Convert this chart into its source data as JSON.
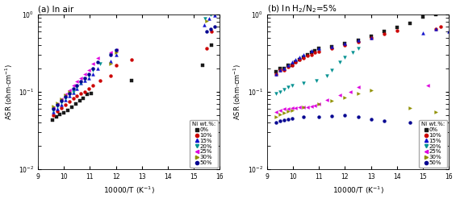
{
  "title_a": "(a) In air",
  "title_b": "(b) In H$_2$/N$_2$=5%",
  "xlabel": "10000/T (K$^{-1}$)",
  "ylabel": "ASR (ohm$\\cdot$cm$^{-1}$)",
  "legend_title": "Ni wt.%:",
  "series": [
    {
      "label": "0%",
      "color": "#1a1a1a",
      "marker": "s",
      "ms": 2.8
    },
    {
      "label": "10%",
      "color": "#cc0000",
      "marker": "o",
      "ms": 2.8
    },
    {
      "label": "15%",
      "color": "#1111cc",
      "marker": "^",
      "ms": 2.8
    },
    {
      "label": "20%",
      "color": "#009090",
      "marker": "v",
      "ms": 2.8
    },
    {
      "label": "25%",
      "color": "#dd00dd",
      "marker": "<",
      "ms": 2.8
    },
    {
      "label": "30%",
      "color": "#909000",
      "marker": ">",
      "ms": 2.8
    },
    {
      "label": "50%",
      "color": "#000090",
      "marker": "o",
      "ms": 2.8
    }
  ],
  "data_air": {
    "0%": {
      "x": [
        9.55,
        9.7,
        9.85,
        10.0,
        10.15,
        10.3,
        10.45,
        10.6,
        10.75,
        10.9,
        11.05,
        12.6,
        15.35,
        15.7
      ],
      "y": [
        0.043,
        0.047,
        0.051,
        0.054,
        0.058,
        0.063,
        0.069,
        0.076,
        0.083,
        0.092,
        0.095,
        0.14,
        0.22,
        0.4
      ]
    },
    "10%": {
      "x": [
        9.6,
        9.75,
        9.9,
        10.05,
        10.2,
        10.35,
        10.5,
        10.65,
        10.8,
        10.95,
        11.1,
        11.4,
        11.8,
        12.0,
        12.6,
        15.5,
        15.7
      ],
      "y": [
        0.05,
        0.056,
        0.062,
        0.068,
        0.075,
        0.082,
        0.088,
        0.095,
        0.1,
        0.11,
        0.12,
        0.14,
        0.16,
        0.22,
        0.26,
        0.36,
        0.6
      ]
    },
    "15%": {
      "x": [
        9.6,
        9.75,
        9.9,
        10.05,
        10.2,
        10.35,
        10.5,
        10.65,
        10.8,
        10.95,
        11.1,
        11.3,
        11.8,
        12.0,
        15.4,
        15.6,
        15.8
      ],
      "y": [
        0.055,
        0.06,
        0.068,
        0.078,
        0.088,
        0.098,
        0.11,
        0.13,
        0.14,
        0.15,
        0.17,
        0.2,
        0.25,
        0.3,
        0.72,
        0.88,
        0.96
      ]
    },
    "20%": {
      "x": [
        9.6,
        9.75,
        9.9,
        10.05,
        10.2,
        10.35,
        10.5,
        10.65,
        10.8,
        10.95,
        11.1,
        11.4,
        11.8,
        12.0,
        15.45,
        15.65
      ],
      "y": [
        0.058,
        0.065,
        0.073,
        0.082,
        0.092,
        0.1,
        0.115,
        0.13,
        0.145,
        0.16,
        0.19,
        0.23,
        0.3,
        0.34,
        0.88,
        1.0
      ]
    },
    "25%": {
      "x": [
        9.6,
        9.75,
        9.9,
        10.05,
        10.2,
        10.35,
        10.5,
        10.65,
        10.8,
        10.95,
        11.1,
        11.3,
        11.8,
        12.0
      ],
      "y": [
        0.062,
        0.07,
        0.08,
        0.092,
        0.105,
        0.12,
        0.135,
        0.15,
        0.17,
        0.19,
        0.23,
        0.27,
        0.32,
        0.35
      ]
    },
    "30%": {
      "x": [
        9.6,
        9.75,
        9.9,
        10.05,
        10.2,
        11.8,
        12.0,
        15.5
      ],
      "y": [
        0.065,
        0.072,
        0.08,
        0.09,
        0.1,
        0.23,
        0.32,
        0.82
      ]
    },
    "50%": {
      "x": [
        9.6,
        9.75,
        9.9,
        10.05,
        10.2,
        10.35,
        10.5,
        10.65,
        10.8,
        10.95,
        11.1,
        11.3,
        11.8,
        12.0,
        15.5,
        15.65,
        15.8
      ],
      "y": [
        0.06,
        0.068,
        0.076,
        0.086,
        0.096,
        0.11,
        0.12,
        0.135,
        0.15,
        0.17,
        0.2,
        0.24,
        0.3,
        0.35,
        0.6,
        0.65,
        0.7
      ]
    }
  },
  "data_h2": {
    "0%": {
      "x": [
        9.35,
        9.5,
        9.65,
        9.8,
        9.95,
        10.1,
        10.25,
        10.4,
        10.55,
        10.7,
        10.85,
        11.0,
        11.5,
        12.0,
        12.5,
        13.0,
        13.5,
        14.0,
        14.5,
        15.0,
        15.5
      ],
      "y": [
        0.18,
        0.2,
        0.2,
        0.22,
        0.22,
        0.24,
        0.26,
        0.28,
        0.3,
        0.32,
        0.34,
        0.36,
        0.38,
        0.42,
        0.46,
        0.52,
        0.6,
        0.68,
        0.76,
        0.92,
        1.0
      ]
    },
    "10%": {
      "x": [
        9.35,
        9.5,
        9.65,
        9.8,
        9.95,
        10.1,
        10.25,
        10.4,
        10.55,
        10.7,
        10.85,
        11.0,
        11.5,
        12.0,
        12.5,
        13.0,
        13.5,
        14.0,
        15.5,
        15.7
      ],
      "y": [
        0.17,
        0.19,
        0.19,
        0.21,
        0.22,
        0.24,
        0.26,
        0.27,
        0.29,
        0.3,
        0.32,
        0.33,
        0.36,
        0.4,
        0.44,
        0.5,
        0.56,
        0.62,
        0.65,
        0.7
      ]
    },
    "15%": {
      "x": [
        9.35,
        9.5,
        9.65,
        9.8,
        9.95,
        10.1,
        10.25,
        10.4,
        10.7,
        11.0,
        11.5,
        12.0,
        12.5,
        13.0,
        15.0,
        15.5,
        16.0
      ],
      "y": [
        0.17,
        0.19,
        0.2,
        0.22,
        0.24,
        0.26,
        0.28,
        0.3,
        0.34,
        0.36,
        0.38,
        0.42,
        0.46,
        0.5,
        0.58,
        0.65,
        0.6
      ]
    },
    "20%": {
      "x": [
        9.35,
        9.5,
        9.65,
        9.8,
        9.95,
        10.4,
        10.9,
        11.3,
        11.5,
        11.8,
        12.0,
        12.3,
        12.5
      ],
      "y": [
        0.095,
        0.1,
        0.108,
        0.115,
        0.12,
        0.13,
        0.14,
        0.16,
        0.19,
        0.24,
        0.28,
        0.32,
        0.36
      ]
    },
    "25%": {
      "x": [
        9.35,
        9.5,
        9.65,
        9.8,
        9.95,
        10.1,
        10.25,
        10.4,
        10.55,
        10.7,
        10.85,
        11.0,
        11.3,
        11.8,
        12.2,
        12.5,
        15.2
      ],
      "y": [
        0.055,
        0.058,
        0.06,
        0.061,
        0.062,
        0.062,
        0.063,
        0.063,
        0.064,
        0.065,
        0.067,
        0.07,
        0.078,
        0.09,
        0.1,
        0.115,
        0.12
      ]
    },
    "30%": {
      "x": [
        9.35,
        9.5,
        9.65,
        9.8,
        9.95,
        10.4,
        11.0,
        11.5,
        12.0,
        12.5,
        13.0,
        14.5,
        15.5
      ],
      "y": [
        0.048,
        0.051,
        0.053,
        0.056,
        0.058,
        0.063,
        0.07,
        0.076,
        0.085,
        0.095,
        0.105,
        0.062,
        0.055
      ]
    },
    "50%": {
      "x": [
        9.35,
        9.5,
        9.65,
        9.8,
        9.95,
        10.4,
        11.0,
        11.5,
        12.0,
        12.5,
        13.0,
        13.5,
        14.5,
        15.0
      ],
      "y": [
        0.04,
        0.042,
        0.043,
        0.044,
        0.045,
        0.047,
        0.048,
        0.049,
        0.05,
        0.047,
        0.044,
        0.042,
        0.04,
        0.04
      ]
    }
  }
}
